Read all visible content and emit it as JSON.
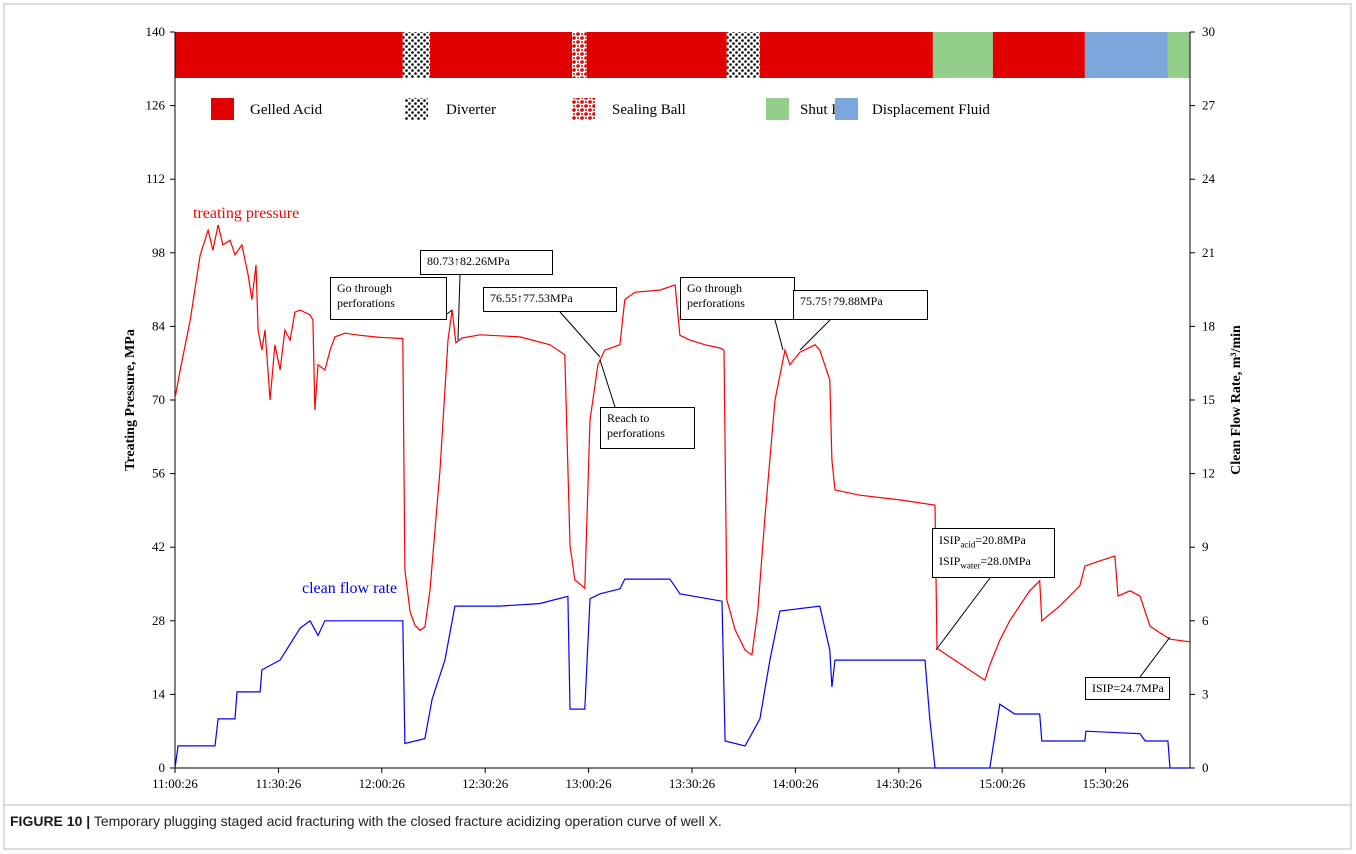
{
  "chart_data": {
    "type": "line",
    "x_ticks": [
      {
        "value": 0,
        "label": "11:00:26"
      },
      {
        "value": 30,
        "label": "11:30:26"
      },
      {
        "value": 60,
        "label": "12:00:26"
      },
      {
        "value": 90,
        "label": "12:30:26"
      },
      {
        "value": 120,
        "label": "13:00:26"
      },
      {
        "value": 150,
        "label": "13:30:26"
      },
      {
        "value": 180,
        "label": "14:00:26"
      },
      {
        "value": 210,
        "label": "14:30:26"
      },
      {
        "value": 240,
        "label": "15:00:26"
      },
      {
        "value": 270,
        "label": "15:30:26"
      }
    ],
    "xlim": [
      0,
      294.5
    ],
    "ylabel": "Treating Pressure, MPa",
    "ylim": [
      0,
      140
    ],
    "yticks": [
      0,
      14,
      28,
      42,
      56,
      70,
      84,
      98,
      112,
      126,
      140
    ],
    "y2label": "Clean Flow Rate, m³/min",
    "y2lim": [
      0,
      30
    ],
    "y2ticks": [
      0,
      3,
      6,
      9,
      12,
      15,
      18,
      21,
      24,
      27,
      30
    ],
    "stage_legend": [
      {
        "name": "Gelled Acid",
        "color": "#e00000"
      },
      {
        "name": "Diverter",
        "color": "#000000"
      },
      {
        "name": "Sealing Ball",
        "color": "#e00000"
      },
      {
        "name": "Shut In",
        "color": "#92d08a"
      },
      {
        "name": "Displacement Fluid",
        "color": "#7ba7dc"
      }
    ],
    "stages": [
      {
        "kind": 0,
        "start": 0,
        "end": 66.1
      },
      {
        "kind": 1,
        "start": 66.1,
        "end": 74.0
      },
      {
        "kind": 0,
        "start": 74.0,
        "end": 115.2
      },
      {
        "kind": 2,
        "start": 115.2,
        "end": 119.5
      },
      {
        "kind": 0,
        "start": 119.5,
        "end": 160.1
      },
      {
        "kind": 1,
        "start": 160.1,
        "end": 169.7
      },
      {
        "kind": 0,
        "start": 169.7,
        "end": 219.9
      },
      {
        "kind": 3,
        "start": 219.9,
        "end": 237.3
      },
      {
        "kind": 0,
        "start": 237.3,
        "end": 264.0
      },
      {
        "kind": 4,
        "start": 264.0,
        "end": 288.1
      },
      {
        "kind": 3,
        "start": 288.1,
        "end": 294.5
      }
    ],
    "series": [
      {
        "name": "treating pressure",
        "color": "#ff0000",
        "x": [
          0,
          1.5,
          4.4,
          7.3,
          9.6,
          11.0,
          12.5,
          13.9,
          16.0,
          17.4,
          19.4,
          21.2,
          22.3,
          23.5,
          24.1,
          25.2,
          26.1,
          27.6,
          29.0,
          30.5,
          31.9,
          33.4,
          34.8,
          36.3,
          39.2,
          40.0,
          40.6,
          41.5,
          43.5,
          45.0,
          46.4,
          49.3,
          53.7,
          59.5,
          66.1,
          66.7,
          68.2,
          69.6,
          71.1,
          72.5,
          74.0,
          76.9,
          79.2,
          80.4,
          81.5,
          83.3,
          88.5,
          100.1,
          108.8,
          113.1,
          114.6,
          116.0,
          118.9,
          120.4,
          122.7,
          124.7,
          129.1,
          130.5,
          133.5,
          140.7,
          145.1,
          146.5,
          149.4,
          153.8,
          158.1,
          159.3,
          160.1,
          162.5,
          165.4,
          167.4,
          169.1,
          171.1,
          174.1,
          177.0,
          178.4,
          181.3,
          185.7,
          187.1,
          190.0,
          190.6,
          191.5,
          198.7,
          210.3,
          220.5,
          221.1,
          221.9,
          226.3,
          235.0,
          236.4,
          239.3,
          242.2,
          248.0,
          250.9,
          251.5,
          256.7,
          262.5,
          264.0,
          268.3,
          272.7,
          273.6,
          277.1,
          280.0,
          282.9,
          285.8,
          288.7,
          294.5
        ],
        "values": [
          70.4,
          75.7,
          85.2,
          97.6,
          102.3,
          98.5,
          103.3,
          99.5,
          100.4,
          97.6,
          99.5,
          93.8,
          89.1,
          95.7,
          83.3,
          79.5,
          83.3,
          70.0,
          80.5,
          75.7,
          83.3,
          81.4,
          86.7,
          87.1,
          86.2,
          85.2,
          68.1,
          76.7,
          75.7,
          79.5,
          82.0,
          82.7,
          82.3,
          81.9,
          81.7,
          37.7,
          29.7,
          27.2,
          26.2,
          26.8,
          33.9,
          56.7,
          81.4,
          87.1,
          80.9,
          81.8,
          82.4,
          82.0,
          80.5,
          78.6,
          42.4,
          35.8,
          34.2,
          66.2,
          76.7,
          79.5,
          80.5,
          89.1,
          90.5,
          90.9,
          91.9,
          82.3,
          81.4,
          80.5,
          79.9,
          79.5,
          32.0,
          26.3,
          22.4,
          21.5,
          29.9,
          47.2,
          70.0,
          79.5,
          76.7,
          79.1,
          80.5,
          79.5,
          73.8,
          58.6,
          52.9,
          51.9,
          51.0,
          50.0,
          22.8,
          22.4,
          20.5,
          16.7,
          19.6,
          24.3,
          28.0,
          33.7,
          35.6,
          28.0,
          30.8,
          34.6,
          38.4,
          39.4,
          40.3,
          32.7,
          33.7,
          32.7,
          27.0,
          25.7,
          24.5,
          24.0
        ]
      },
      {
        "name": "clean flow rate",
        "color": "#0000ff",
        "axis": "y2",
        "x": [
          0,
          0.9,
          11.6,
          12.5,
          17.4,
          18.0,
          24.7,
          25.2,
          30.5,
          36.3,
          39.2,
          41.5,
          43.5,
          49.3,
          66.1,
          66.7,
          72.5,
          74.6,
          78.3,
          81.2,
          94.2,
          105.8,
          114.0,
          114.6,
          118.9,
          120.4,
          123.3,
          129.1,
          130.5,
          143.6,
          146.5,
          158.7,
          159.6,
          165.4,
          169.7,
          172.6,
          175.5,
          187.1,
          190.0,
          190.6,
          191.5,
          217.6,
          219.0,
          220.5,
          236.4,
          239.3,
          243.6,
          250.9,
          251.5,
          264.0,
          264.3,
          280.0,
          281.5,
          288.1,
          288.7,
          294.5
        ],
        "values": [
          0,
          0.9,
          0.9,
          2.0,
          2.0,
          3.1,
          3.1,
          4.0,
          4.4,
          5.7,
          6.0,
          5.4,
          6.0,
          6.0,
          6.0,
          1.0,
          1.2,
          2.8,
          4.4,
          6.6,
          6.6,
          6.7,
          7.0,
          2.4,
          2.4,
          6.9,
          7.1,
          7.3,
          7.7,
          7.7,
          7.1,
          6.8,
          1.1,
          0.9,
          2.0,
          4.4,
          6.4,
          6.6,
          4.8,
          3.3,
          4.4,
          4.4,
          2.0,
          0,
          0,
          2.6,
          2.2,
          2.2,
          1.1,
          1.1,
          1.5,
          1.4,
          1.1,
          1.1,
          0,
          0
        ]
      }
    ],
    "annotations": [
      {
        "text": "Go through perforations"
      },
      {
        "text": "80.73↑82.26MPa"
      },
      {
        "text": "76.55↑77.53MPa"
      },
      {
        "text": "Reach to perforations"
      },
      {
        "text": "Go through perforations"
      },
      {
        "text": "75.75↑79.88MPa"
      },
      {
        "parts": [
          "ISIP",
          "acid",
          "=20.8MPa",
          "ISIP",
          "water",
          "=28.0MPa"
        ]
      },
      {
        "text": "ISIP=24.7MPa"
      }
    ],
    "caption_label": "FIGURE 10 |",
    "caption": "Temporary plugging staged acid fracturing with the closed fracture acidizing operation curve of well X."
  }
}
